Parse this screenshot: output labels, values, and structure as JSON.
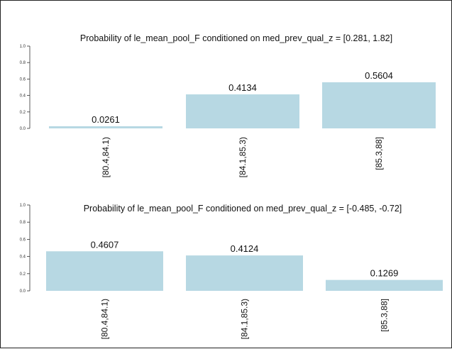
{
  "chart_data": [
    {
      "type": "bar",
      "title": "Probability of le_mean_pool_F conditioned on med_prev_qual_z = [0.281, 1.82]",
      "categories": [
        "[80.4,84.1)",
        "[84.1,85.3)",
        "[85.3,88]"
      ],
      "values": [
        0.0261,
        0.4134,
        0.5604
      ],
      "value_labels": [
        "0.0261",
        "0.4134",
        "0.5604"
      ],
      "yticks": [
        "0.0",
        "0.2",
        "0.4",
        "0.6",
        "0.8",
        "1.0"
      ],
      "ylim": [
        0,
        1
      ],
      "xlabel": "",
      "ylabel": "",
      "bar_color": "#b7d8e3",
      "grid": false
    },
    {
      "type": "bar",
      "title": "Probability of le_mean_pool_F conditioned on med_prev_qual_z = [-0.485, -0.72]",
      "categories": [
        "[80.4,84.1)",
        "[84.1,85.3)",
        "[85.3,88]"
      ],
      "values": [
        0.4607,
        0.4124,
        0.1269
      ],
      "value_labels": [
        "0.4607",
        "0.4124",
        "0.1269"
      ],
      "yticks": [
        "0.0",
        "0.2",
        "0.4",
        "0.6",
        "0.8",
        "1.0"
      ],
      "ylim": [
        0,
        1
      ],
      "xlabel": "",
      "ylabel": "",
      "bar_color": "#b7d8e3",
      "grid": false
    }
  ]
}
